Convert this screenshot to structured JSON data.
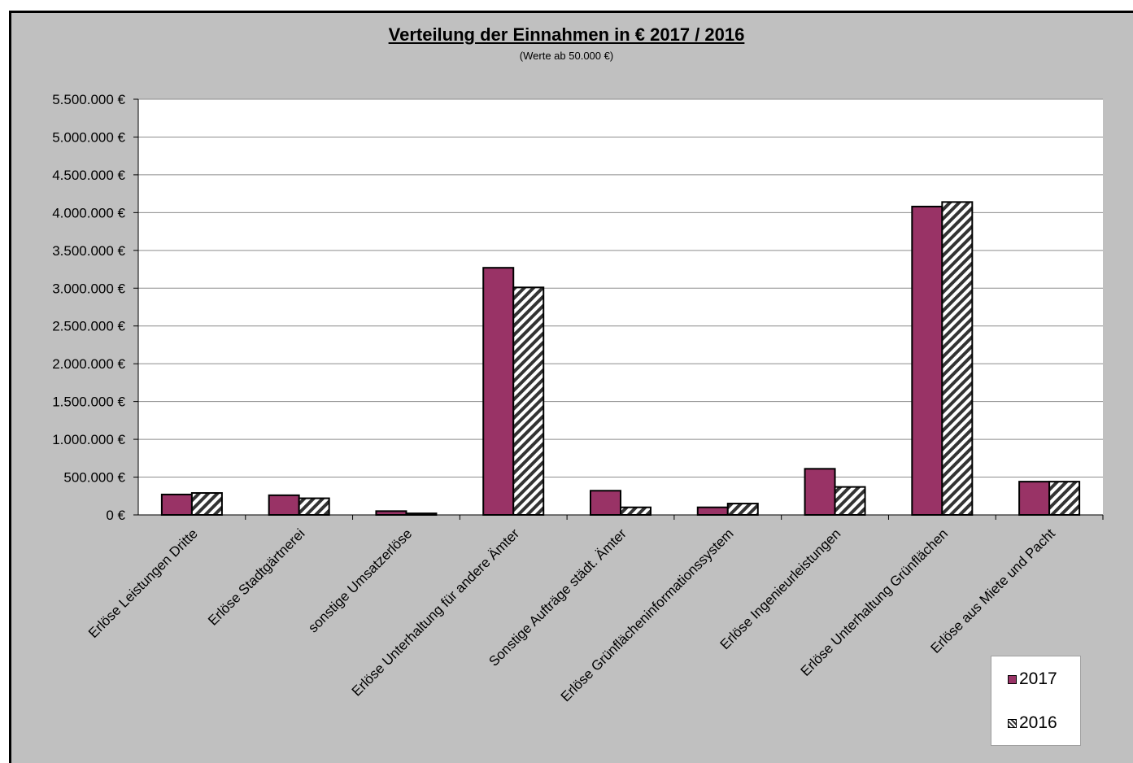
{
  "chart_data": {
    "type": "bar",
    "title": "Verteilung der Einnahmen in € 2017 / 2016",
    "subtitle": "(Werte ab 50.000 €)",
    "xlabel": "",
    "ylabel": "",
    "ylim": [
      0,
      5500000
    ],
    "yticks": [
      0,
      500000,
      1000000,
      1500000,
      2000000,
      2500000,
      3000000,
      3500000,
      4000000,
      4500000,
      5000000,
      5500000
    ],
    "ytick_labels": [
      "0 €",
      "500.000 €",
      "1.000.000 €",
      "1.500.000 €",
      "2.000.000 €",
      "2.500.000 €",
      "3.000.000 €",
      "3.500.000 €",
      "4.000.000 €",
      "4.500.000 €",
      "5.000.000 €",
      "5.500.000 €"
    ],
    "grid": true,
    "legend_position": "bottom-right",
    "categories": [
      "Erlöse Leistungen Dritte",
      "Erlöse Stadtgärtnerei",
      "sonstige Umsatzerlöse",
      "Erlöse Unterhaltung für andere Ämter",
      "Sonstige Aufträge städt. Ämter",
      "Erlöse Grünflächeninformationssystem",
      "Erlöse Ingenieurleistungen",
      "Erlöse Unterhaltung Grünflächen",
      "Erlöse aus Miete und Pacht"
    ],
    "series": [
      {
        "name": "2017",
        "color": "#993366",
        "pattern": "solid",
        "values": [
          270000,
          260000,
          50000,
          3270000,
          320000,
          100000,
          610000,
          4080000,
          440000
        ]
      },
      {
        "name": "2016",
        "color": "#333333",
        "pattern": "diagonal-stripes",
        "values": [
          290000,
          220000,
          20000,
          3010000,
          100000,
          150000,
          370000,
          4140000,
          440000
        ]
      }
    ]
  },
  "legend": {
    "items": [
      "2017",
      "2016"
    ]
  }
}
